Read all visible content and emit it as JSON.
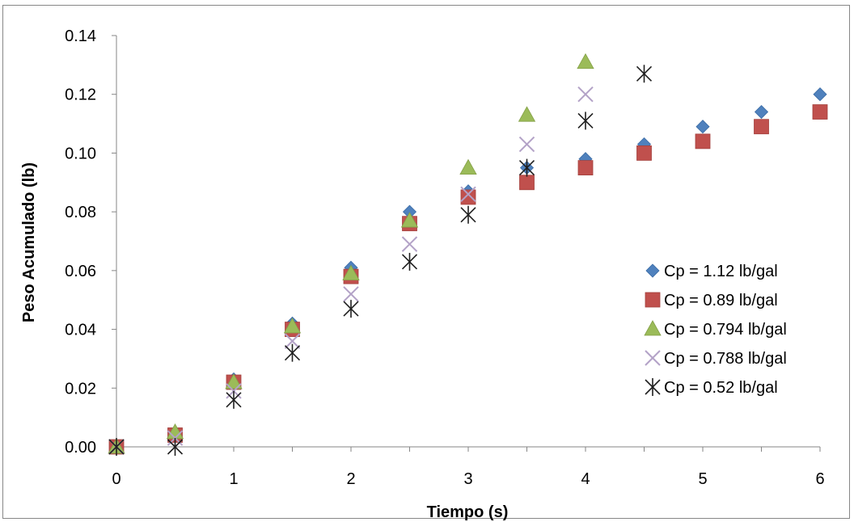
{
  "chart_data": {
    "type": "scatter",
    "xlabel": "Tiempo (s)",
    "ylabel": "Peso Acumulado (lb)",
    "xlim": [
      0,
      6
    ],
    "ylim": [
      0,
      0.14
    ],
    "x_ticks": [
      "0",
      "0.5",
      "1",
      "1.5",
      "2",
      "2.5",
      "3",
      "3.5",
      "4",
      "4.5",
      "5",
      "5.5",
      "6"
    ],
    "x_tick_labels": [
      "0",
      "1",
      "2",
      "3",
      "4",
      "5",
      "6"
    ],
    "x_tick_values": [
      0,
      1,
      2,
      3,
      4,
      5,
      6
    ],
    "y_tick_labels": [
      "0.00",
      "0.02",
      "0.04",
      "0.06",
      "0.08",
      "0.10",
      "0.12",
      "0.14"
    ],
    "y_tick_values": [
      0,
      0.02,
      0.04,
      0.06,
      0.08,
      0.1,
      0.12,
      0.14
    ],
    "grid": false,
    "legend_position": "right",
    "series": [
      {
        "name": "Cp = 1.12 lb/gal",
        "marker": "diamond",
        "color": "#4F81BD",
        "points": [
          [
            0,
            0.0
          ],
          [
            0.5,
            0.004
          ],
          [
            1,
            0.023
          ],
          [
            1.5,
            0.042
          ],
          [
            2,
            0.061
          ],
          [
            2.5,
            0.08
          ],
          [
            3,
            0.087
          ],
          [
            3.5,
            0.095
          ],
          [
            4,
            0.098
          ],
          [
            4.5,
            0.103
          ],
          [
            5,
            0.109
          ],
          [
            5.5,
            0.114
          ],
          [
            6,
            0.12
          ]
        ]
      },
      {
        "name": "Cp = 0.89 lb/gal",
        "marker": "square",
        "color": "#C0504D",
        "points": [
          [
            0,
            0.0
          ],
          [
            0.5,
            0.004
          ],
          [
            1,
            0.022
          ],
          [
            1.5,
            0.04
          ],
          [
            2,
            0.058
          ],
          [
            2.5,
            0.076
          ],
          [
            3,
            0.085
          ],
          [
            3.5,
            0.09
          ],
          [
            4,
            0.095
          ],
          [
            4.5,
            0.1
          ],
          [
            5,
            0.104
          ],
          [
            5.5,
            0.109
          ],
          [
            6,
            0.114
          ]
        ]
      },
      {
        "name": "Cp = 0.794 lb/gal",
        "marker": "triangle",
        "color": "#9BBB59",
        "points": [
          [
            0,
            0.0
          ],
          [
            0.5,
            0.005
          ],
          [
            1,
            0.022
          ],
          [
            1.5,
            0.041
          ],
          [
            2,
            0.059
          ],
          [
            2.5,
            0.077
          ],
          [
            3,
            0.095
          ],
          [
            3.5,
            0.113
          ],
          [
            4,
            0.131
          ]
        ]
      },
      {
        "name": "Cp = 0.788 lb/gal",
        "marker": "x",
        "color": "#B3A2C7",
        "points": [
          [
            0,
            0.0
          ],
          [
            0.5,
            0.003
          ],
          [
            1,
            0.019
          ],
          [
            1.5,
            0.036
          ],
          [
            2,
            0.052
          ],
          [
            2.5,
            0.069
          ],
          [
            3,
            0.086
          ],
          [
            3.5,
            0.103
          ],
          [
            4,
            0.12
          ]
        ]
      },
      {
        "name": "Cp = 0.52 lb/gal",
        "marker": "star",
        "color": "#1F1F1F",
        "points": [
          [
            0,
            0.0
          ],
          [
            0.5,
            0.0
          ],
          [
            1,
            0.016
          ],
          [
            1.5,
            0.032
          ],
          [
            2,
            0.047
          ],
          [
            2.5,
            0.063
          ],
          [
            3,
            0.079
          ],
          [
            3.5,
            0.095
          ],
          [
            4,
            0.111
          ],
          [
            4.5,
            0.127
          ]
        ]
      }
    ]
  }
}
